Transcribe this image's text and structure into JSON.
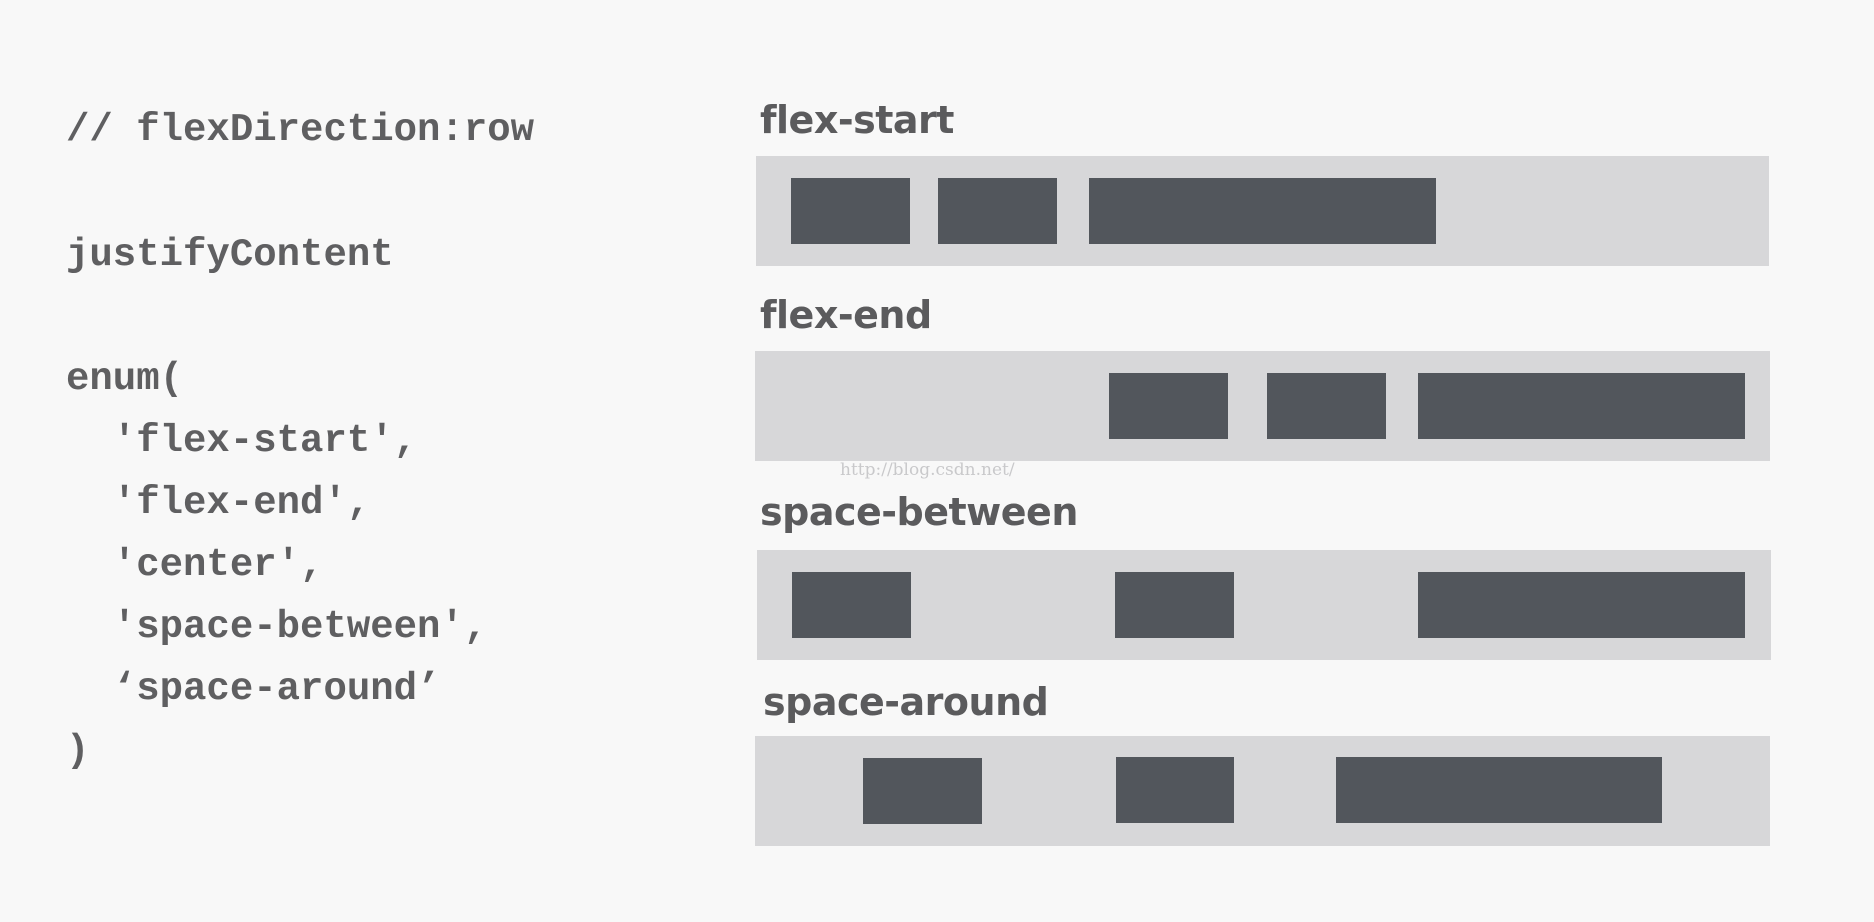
{
  "code": {
    "lines": [
      "// flexDirection:row",
      "",
      "justifyContent",
      "",
      "enum(",
      "  'flex-start',",
      "  'flex-end',",
      "  'center',",
      "  'space-between',",
      "  ‘space-around’",
      ")"
    ]
  },
  "diagram": {
    "rows": [
      {
        "label": "flex-start"
      },
      {
        "label": "flex-end"
      },
      {
        "label": "space-between"
      },
      {
        "label": "space-around"
      }
    ]
  },
  "watermark": "http://blog.csdn.net/",
  "colors": {
    "background": "#f8f8f8",
    "track": "#d7d7d9",
    "box": "#52565c",
    "text": "#5f5f61"
  }
}
